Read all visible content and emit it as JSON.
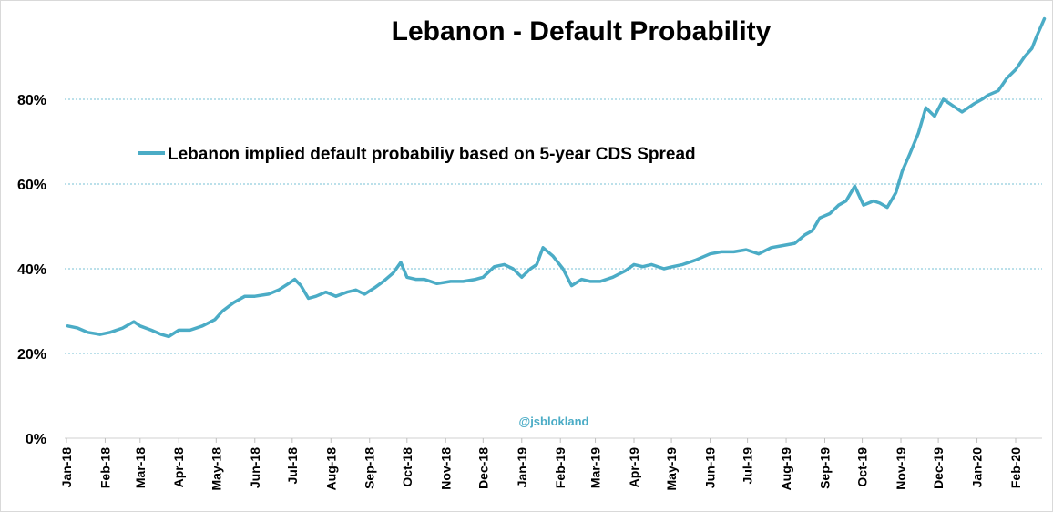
{
  "chart_data": {
    "type": "line",
    "title": "Lebanon - Default Probability",
    "xlabel": "",
    "ylabel": "",
    "ylim": [
      0,
      1.0
    ],
    "yticks": [
      "0%",
      "20%",
      "40%",
      "60%",
      "80%"
    ],
    "ytick_values": [
      0,
      0.2,
      0.4,
      0.6,
      0.8
    ],
    "grid": true,
    "legend_position": "upper-left",
    "watermark": "@jsblokland",
    "line_color": "#4bacc6",
    "xticks": [
      "Jan-18",
      "Feb-18",
      "Mar-18",
      "Apr-18",
      "May-18",
      "Jun-18",
      "Jul-18",
      "Aug-18",
      "Sep-18",
      "Oct-18",
      "Nov-18",
      "Dec-18",
      "Jan-19",
      "Feb-19",
      "Mar-19",
      "Apr-19",
      "May-19",
      "Jun-19",
      "Jul-19",
      "Aug-19",
      "Sep-19",
      "Oct-19",
      "Nov-19",
      "Dec-19",
      "Jan-20",
      "Feb-20"
    ],
    "series": [
      {
        "name": "Lebanon implied default probabiliy based on 5-year CDS Spread",
        "x": [
          "2018-01-02",
          "2018-01-10",
          "2018-01-18",
          "2018-01-28",
          "2018-02-05",
          "2018-02-15",
          "2018-02-24",
          "2018-03-01",
          "2018-03-10",
          "2018-03-18",
          "2018-03-24",
          "2018-04-01",
          "2018-04-10",
          "2018-04-20",
          "2018-04-30",
          "2018-05-06",
          "2018-05-15",
          "2018-05-24",
          "2018-06-01",
          "2018-06-12",
          "2018-06-20",
          "2018-06-28",
          "2018-07-03",
          "2018-07-08",
          "2018-07-14",
          "2018-07-20",
          "2018-07-28",
          "2018-08-05",
          "2018-08-14",
          "2018-08-21",
          "2018-08-28",
          "2018-09-05",
          "2018-09-12",
          "2018-09-20",
          "2018-09-26",
          "2018-10-01",
          "2018-10-08",
          "2018-10-15",
          "2018-10-25",
          "2018-11-05",
          "2018-11-15",
          "2018-11-25",
          "2018-12-01",
          "2018-12-10",
          "2018-12-18",
          "2018-12-25",
          "2019-01-01",
          "2019-01-08",
          "2019-01-13",
          "2019-01-18",
          "2019-01-26",
          "2019-02-03",
          "2019-02-10",
          "2019-02-18",
          "2019-02-25",
          "2019-03-05",
          "2019-03-15",
          "2019-03-25",
          "2019-04-01",
          "2019-04-08",
          "2019-04-15",
          "2019-04-25",
          "2019-05-02",
          "2019-05-10",
          "2019-05-20",
          "2019-06-01",
          "2019-06-10",
          "2019-06-20",
          "2019-06-30",
          "2019-07-10",
          "2019-07-20",
          "2019-07-30",
          "2019-08-08",
          "2019-08-16",
          "2019-08-22",
          "2019-08-28",
          "2019-09-05",
          "2019-09-12",
          "2019-09-18",
          "2019-09-25",
          "2019-10-02",
          "2019-10-10",
          "2019-10-15",
          "2019-10-21",
          "2019-10-28",
          "2019-11-02",
          "2019-11-08",
          "2019-11-15",
          "2019-11-21",
          "2019-11-28",
          "2019-12-05",
          "2019-12-10",
          "2019-12-20",
          "2019-12-30",
          "2020-01-05",
          "2020-01-10",
          "2020-01-18",
          "2020-01-25",
          "2020-02-01",
          "2020-02-08",
          "2020-02-14",
          "2020-02-18",
          "2020-02-24"
        ],
        "y": [
          0.265,
          0.26,
          0.25,
          0.245,
          0.25,
          0.26,
          0.275,
          0.265,
          0.255,
          0.245,
          0.24,
          0.255,
          0.255,
          0.265,
          0.28,
          0.3,
          0.32,
          0.335,
          0.335,
          0.34,
          0.35,
          0.365,
          0.375,
          0.36,
          0.33,
          0.335,
          0.345,
          0.335,
          0.345,
          0.35,
          0.34,
          0.355,
          0.37,
          0.39,
          0.415,
          0.38,
          0.375,
          0.375,
          0.365,
          0.37,
          0.37,
          0.375,
          0.38,
          0.405,
          0.41,
          0.4,
          0.38,
          0.4,
          0.41,
          0.45,
          0.43,
          0.4,
          0.36,
          0.375,
          0.37,
          0.37,
          0.38,
          0.395,
          0.41,
          0.405,
          0.41,
          0.4,
          0.405,
          0.41,
          0.42,
          0.435,
          0.44,
          0.44,
          0.445,
          0.435,
          0.45,
          0.455,
          0.46,
          0.48,
          0.49,
          0.52,
          0.53,
          0.55,
          0.56,
          0.595,
          0.55,
          0.56,
          0.555,
          0.545,
          0.58,
          0.63,
          0.67,
          0.72,
          0.78,
          0.76,
          0.8,
          0.79,
          0.77,
          0.79,
          0.8,
          0.81,
          0.82,
          0.85,
          0.87,
          0.9,
          0.92,
          0.95,
          0.99
        ]
      }
    ]
  }
}
